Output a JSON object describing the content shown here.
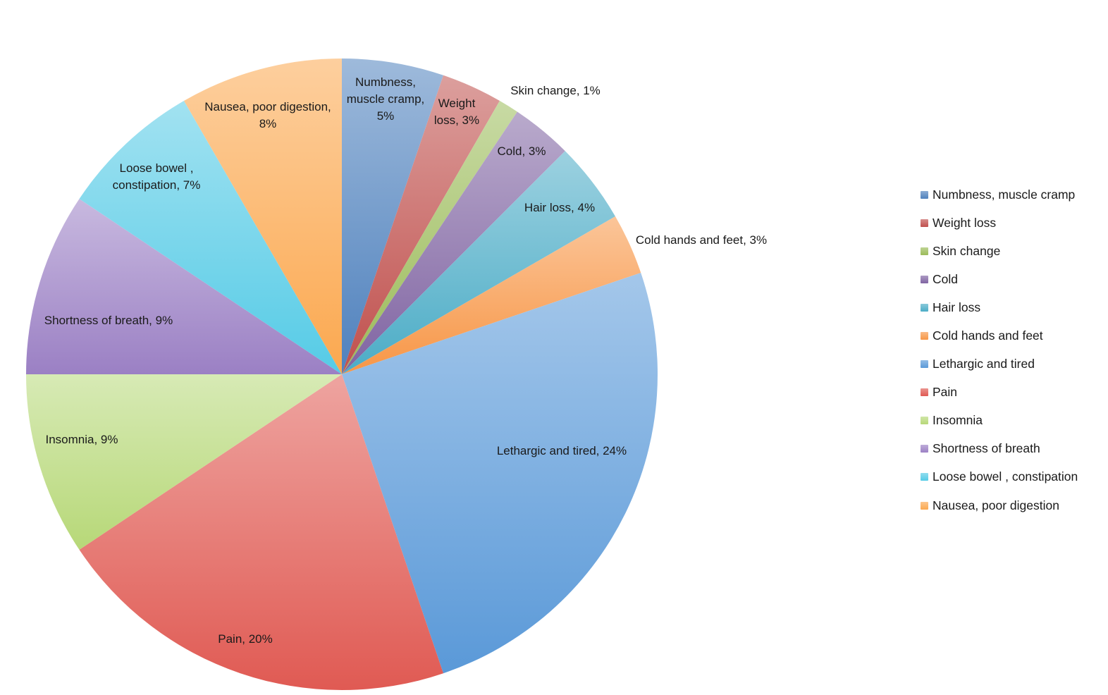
{
  "chart_data": {
    "type": "pie",
    "start_angle_deg": 0,
    "direction": "clockwise",
    "legend_position": "right",
    "slices": [
      {
        "name": "Numbness, muscle cramp",
        "label": "Numbness,\nmuscle cramp,\n5%",
        "value": 5,
        "color": "#4f81bd"
      },
      {
        "name": "Weight loss",
        "label": "Weight\nloss, 3%",
        "value": 3,
        "color": "#c0504d"
      },
      {
        "name": "Skin change",
        "label": "Skin change, 1%",
        "value": 1,
        "color": "#9bbb59"
      },
      {
        "name": "Cold",
        "label": "Cold, 3%",
        "value": 3,
        "color": "#8064a2"
      },
      {
        "name": "Hair loss",
        "label": "Hair loss, 4%",
        "value": 4,
        "color": "#4bacc6"
      },
      {
        "name": "Cold hands and feet",
        "label": "Cold hands and feet, 3%",
        "value": 3,
        "color": "#f79646"
      },
      {
        "name": "Lethargic and tired",
        "label": "Lethargic and tired, 24%",
        "value": 24,
        "color": "#5a99d8"
      },
      {
        "name": "Pain",
        "label": "Pain, 20%",
        "value": 20,
        "color": "#e05a53"
      },
      {
        "name": "Insomnia",
        "label": "Insomnia, 9%",
        "value": 9,
        "color": "#b7d878"
      },
      {
        "name": "Shortness of breath",
        "label": "Shortness of breath, 9%",
        "value": 9,
        "color": "#9b80c4"
      },
      {
        "name": "Loose bowel , constipation",
        "label": "Loose bowel ,\nconstipation, 7%",
        "value": 7,
        "color": "#55cbe6"
      },
      {
        "name": "Nausea, poor digestion",
        "label": "Nausea, poor digestion,\n8%",
        "value": 8,
        "color": "#fba84f"
      }
    ]
  }
}
